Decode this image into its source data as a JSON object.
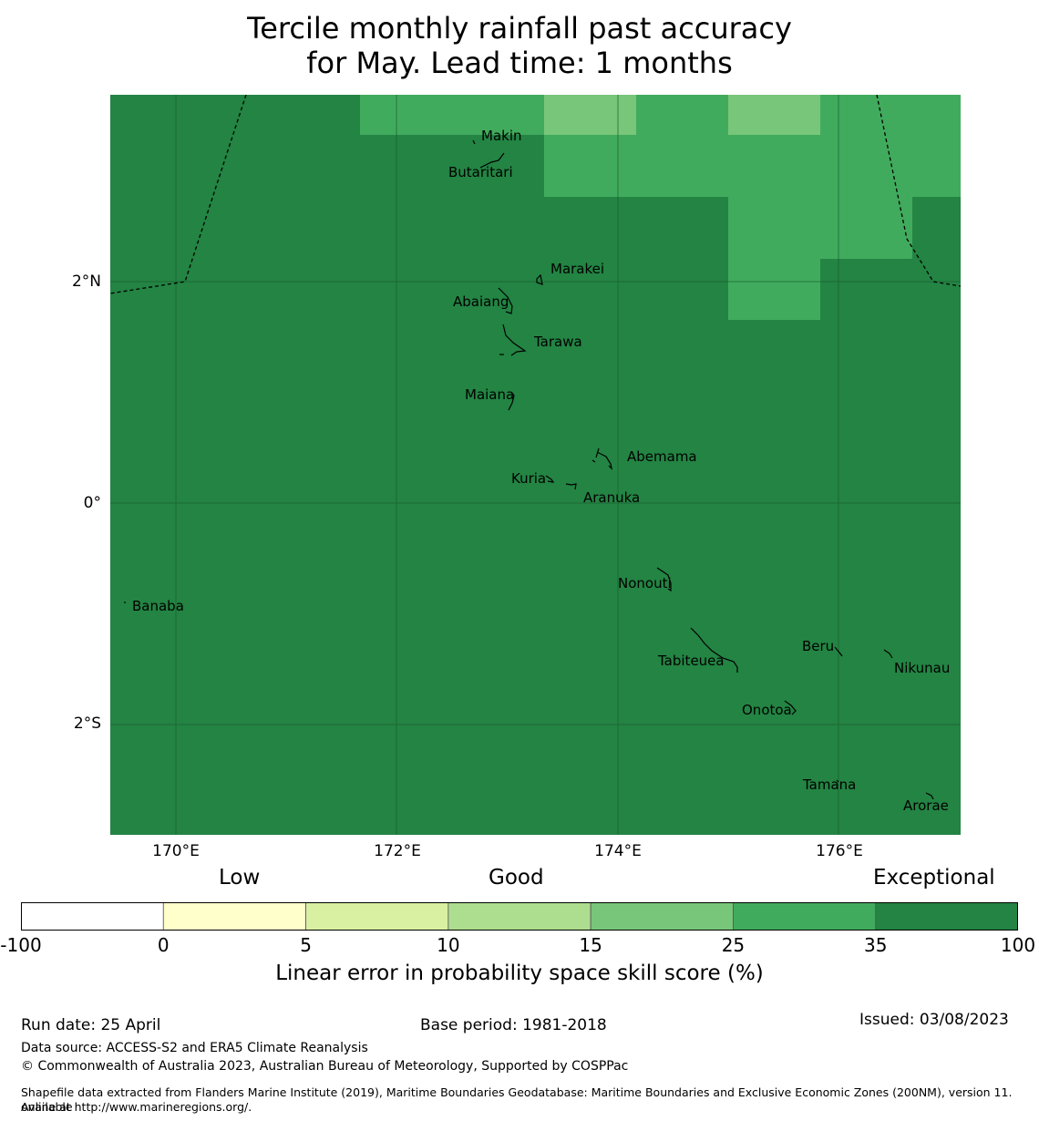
{
  "title": {
    "line1": "Tercile monthly rainfall past accuracy",
    "line2": "for May. Lead time: 1 months"
  },
  "map": {
    "y_ticks": [
      "2°N",
      "0°",
      "2°S"
    ],
    "x_ticks": [
      "170°E",
      "172°E",
      "174°E",
      "176°E"
    ],
    "colors": {
      "background": "#238443",
      "cell_35_25": "#41ab5d",
      "cell_25_15": "#78c679",
      "gridline": "#1a5e30",
      "boundary": "#000000"
    },
    "places": [
      "Makin",
      "Butaritari",
      "Marakei",
      "Abaiang",
      "Tarawa",
      "Maiana",
      "Abemama",
      "Kuria",
      "Aranuka",
      "Nonouti",
      "Banaba",
      "Tabiteuea",
      "Beru",
      "Nikunau",
      "Onotoa",
      "Tamana",
      "Arorae"
    ]
  },
  "legend": {
    "qualitative": {
      "low": "Low",
      "good": "Good",
      "exceptional": "Exceptional"
    },
    "bins": [
      {
        "from": "-100",
        "to": "0",
        "color": "#ffffff"
      },
      {
        "from": "0",
        "to": "5",
        "color": "#ffffcc"
      },
      {
        "from": "5",
        "to": "10",
        "color": "#d9f0a3"
      },
      {
        "from": "10",
        "to": "15",
        "color": "#addd8e"
      },
      {
        "from": "15",
        "to": "25",
        "color": "#78c679"
      },
      {
        "from": "25",
        "to": "35",
        "color": "#41ab5d"
      },
      {
        "from": "35",
        "to": "100",
        "color": "#238443"
      }
    ],
    "ticks": [
      "-100",
      "0",
      "5",
      "10",
      "15",
      "25",
      "35",
      "100"
    ],
    "label": "Linear error in probability space skill score (%)"
  },
  "footer": {
    "run_date": "Run date: 25 April",
    "base_period": "Base period: 1981-2018",
    "issued": "Issued: 03/08/2023",
    "data_source": "Data source: ACCESS-S2 and ERA5 Climate Reanalysis",
    "copyright": "© Commonwealth of Australia 2023, Australian Bureau of Meteorology, Supported by COSPPac",
    "shapefile_line1": "Shapefile data extracted from Flanders Marine Institute (2019), Maritime Boundaries Geodatabase: Maritime Boundaries and Exclusive Economic Zones (200NM), version 11. Available",
    "shapefile_line2": "online at http://www.marineregions.org/."
  }
}
